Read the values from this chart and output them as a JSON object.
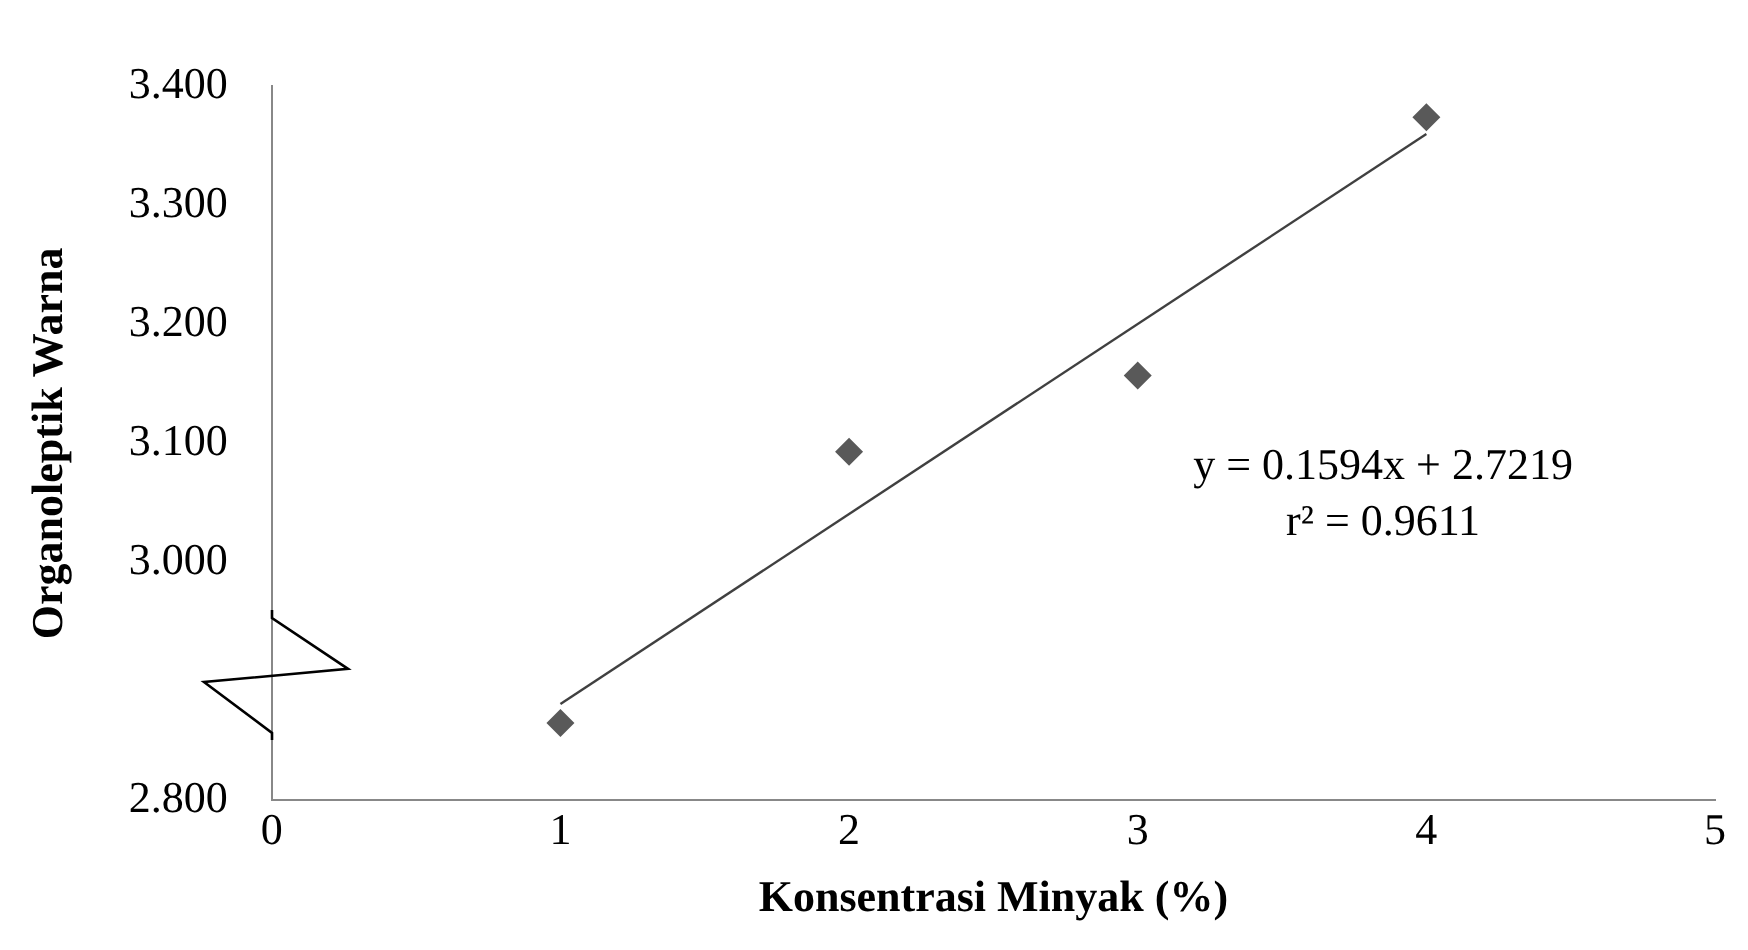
{
  "chart_data": {
    "type": "scatter",
    "xlabel": "Konsentrasi Minyak (%)",
    "ylabel": "Organoleptik Warna",
    "series": [
      {
        "color": "#595959",
        "x": [
          1,
          2,
          3,
          4
        ],
        "values": [
          2.865,
          3.093,
          3.157,
          3.374
        ],
        "marker": "diamond"
      },
      {
        "type": "line",
        "color": "#404040",
        "x": [
          1,
          4
        ],
        "values": [
          2.881,
          3.36
        ],
        "marker": "none",
        "line_style": "solid"
      }
    ],
    "xlim": [
      0,
      5
    ],
    "xticks": [
      0,
      1,
      2,
      3,
      4,
      5
    ],
    "ylim": [
      2.8,
      3.4
    ],
    "yticks": [
      {
        "value": 2.8,
        "label": "2.800"
      },
      {
        "value": 3.0,
        "label": "3.000"
      },
      {
        "value": 3.1,
        "label": "3.100"
      },
      {
        "value": 3.2,
        "label": "3.200"
      },
      {
        "value": 3.3,
        "label": "3.300"
      },
      {
        "value": 3.4,
        "label": "3.400"
      }
    ],
    "grid": false,
    "legend": false,
    "annotations": [
      "y = 0.1594x + 2.7219",
      "r² = 0.9611"
    ]
  }
}
